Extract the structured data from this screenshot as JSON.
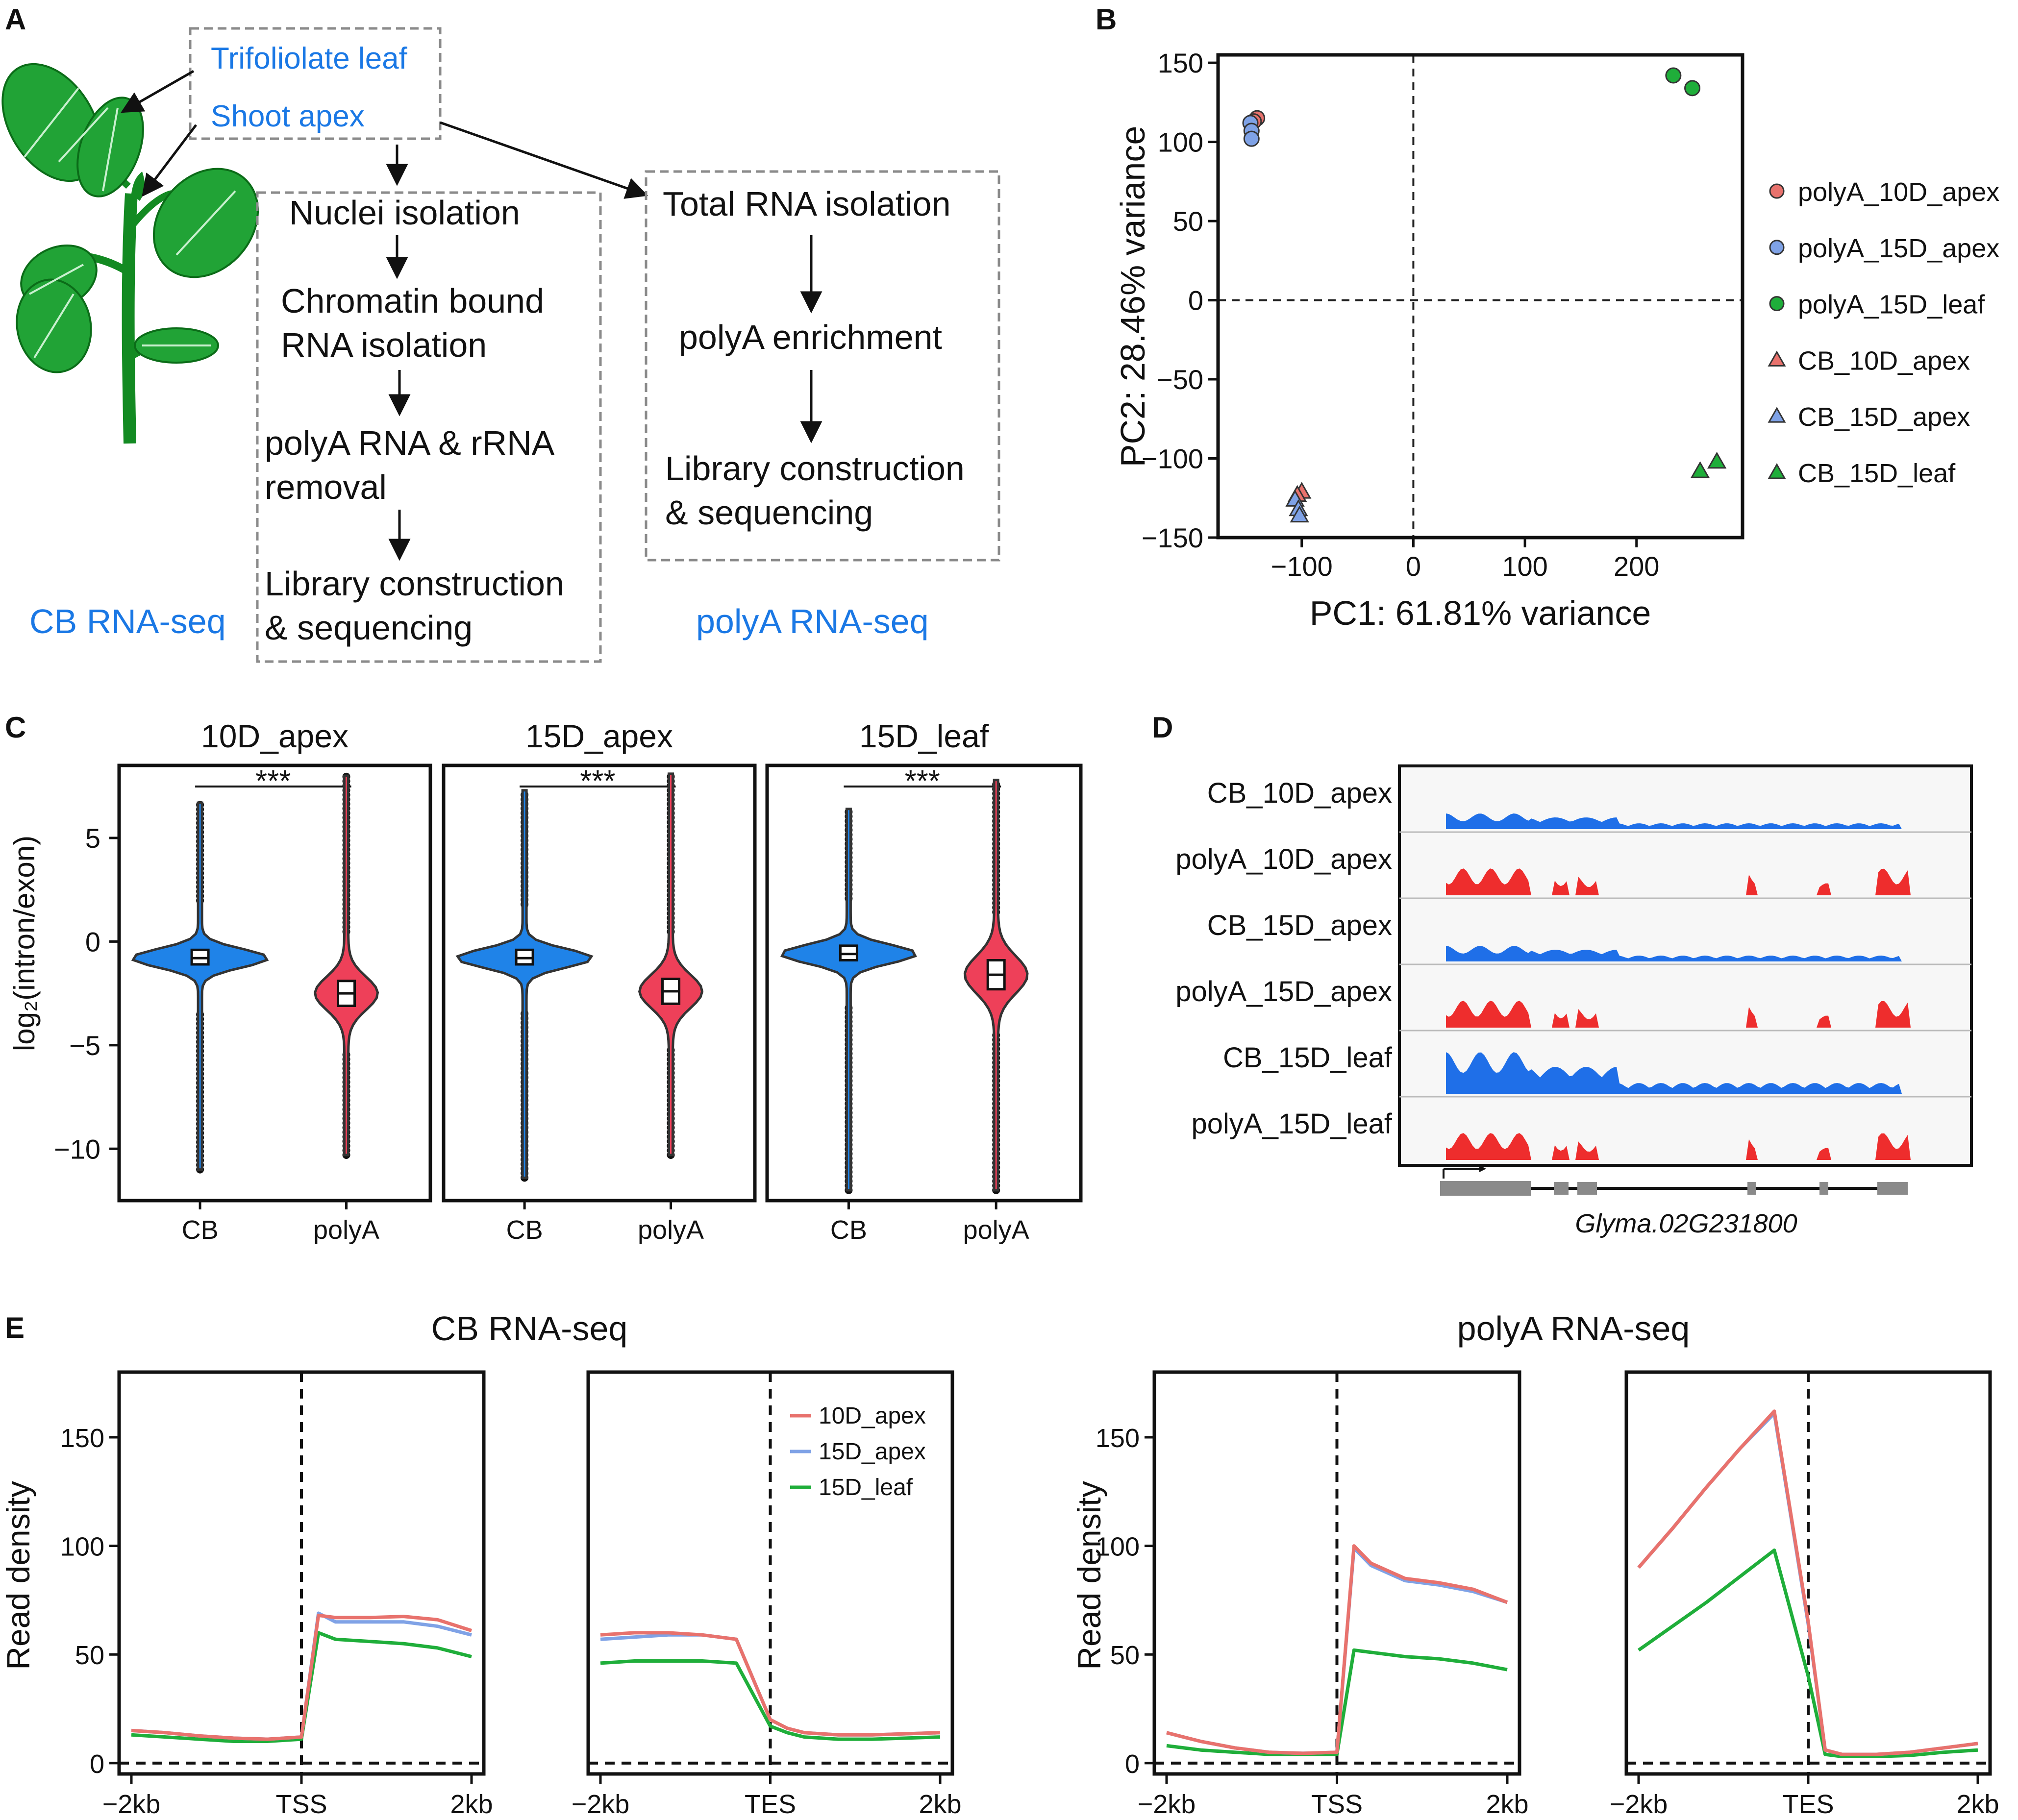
{
  "colors": {
    "red": "#e8726d",
    "blue": "#7fa2e6",
    "green": "#1fae3a",
    "cb_violin": "#1f83e8",
    "polya_violin": "#ee4059",
    "track_blue": "#1f6fe8",
    "track_red": "#ee2d2d",
    "flow_blue": "#1a78e5"
  },
  "panel_labels": {
    "a": "A",
    "b": "B",
    "c": "C",
    "d": "D",
    "e": "E"
  },
  "panel_a": {
    "box_top": [
      "Trifoliolate leaf",
      "Shoot apex"
    ],
    "cb_steps": [
      "Nuclei isolation",
      "Chromatin bound",
      "RNA isolation",
      "polyA RNA & rRNA",
      "removal",
      "Library construction",
      "& sequencing"
    ],
    "polya_steps": [
      "Total RNA isolation",
      "polyA enrichment",
      "Library construction",
      "& sequencing"
    ],
    "cb_label": "CB RNA-seq",
    "polya_label": "polyA RNA-seq"
  },
  "panel_b": {
    "chart_data": {
      "type": "scatter",
      "xlabel": "PC1: 61.81% variance",
      "ylabel": "PC2: 28.46% variance",
      "xlim": [
        -175,
        295
      ],
      "ylim": [
        -150,
        155
      ],
      "xticks": [
        -100,
        0,
        100,
        200
      ],
      "yticks": [
        -150,
        -100,
        -50,
        0,
        50,
        100,
        150
      ],
      "xtick_labels": [
        "−100",
        "0",
        "100",
        "200"
      ],
      "ytick_labels": [
        "−150",
        "−100",
        "−50",
        "0",
        "50",
        "100",
        "150"
      ],
      "legend_position": "right",
      "series": [
        {
          "name": "polyA_10D_apex",
          "marker": "circle",
          "color": "#e8726d",
          "points": [
            [
              -140,
              115
            ],
            [
              -143,
              113
            ]
          ]
        },
        {
          "name": "polyA_15D_apex",
          "marker": "circle",
          "color": "#7fa2e6",
          "points": [
            [
              -146,
              112
            ],
            [
              -145,
              107
            ],
            [
              -145,
              102
            ]
          ]
        },
        {
          "name": "polyA_15D_leaf",
          "marker": "circle",
          "color": "#1fae3a",
          "points": [
            [
              233,
              142
            ],
            [
              250,
              134
            ]
          ]
        },
        {
          "name": "CB_10D_apex",
          "marker": "triangle",
          "color": "#e8726d",
          "points": [
            [
              -100,
              -121
            ],
            [
              -104,
              -123
            ]
          ]
        },
        {
          "name": "CB_15D_apex",
          "marker": "triangle",
          "color": "#7fa2e6",
          "points": [
            [
              -106,
              -126
            ],
            [
              -103,
              -132
            ],
            [
              -102,
              -136
            ]
          ]
        },
        {
          "name": "CB_15D_leaf",
          "marker": "triangle",
          "color": "#1fae3a",
          "points": [
            [
              257,
              -108
            ],
            [
              272,
              -102
            ]
          ]
        }
      ]
    }
  },
  "panel_c": {
    "ylabel": "log₂(intron/exon)",
    "ytick_labels": [
      "5",
      "0",
      "−5",
      "−10"
    ],
    "chart_data": {
      "type": "violin",
      "ylim": [
        -12.5,
        8.5
      ],
      "yticks": [
        5,
        0,
        -5,
        -10
      ],
      "panels": [
        {
          "title": "10D_apex",
          "significance": "***",
          "groups": [
            {
              "name": "CB",
              "median": -0.8,
              "q1": -1.1,
              "q3": -0.4,
              "min": -11.0,
              "max": 6.7
            },
            {
              "name": "polyA",
              "median": -2.5,
              "q1": -3.1,
              "q3": -1.9,
              "min": -10.3,
              "max": 8.0
            }
          ]
        },
        {
          "title": "15D_apex",
          "significance": "***",
          "groups": [
            {
              "name": "CB",
              "median": -0.8,
              "q1": -1.1,
              "q3": -0.4,
              "min": -11.4,
              "max": 7.3
            },
            {
              "name": "polyA",
              "median": -2.4,
              "q1": -3.0,
              "q3": -1.8,
              "min": -10.3,
              "max": 8.1
            }
          ]
        },
        {
          "title": "15D_leaf",
          "significance": "***",
          "groups": [
            {
              "name": "CB",
              "median": -0.6,
              "q1": -0.9,
              "q3": -0.2,
              "min": -12.0,
              "max": 6.4
            },
            {
              "name": "polyA",
              "median": -1.6,
              "q1": -2.3,
              "q3": -0.9,
              "min": -12.0,
              "max": 7.8
            }
          ]
        }
      ]
    }
  },
  "panel_d": {
    "tracks": [
      "CB_10D_apex",
      "polyA_10D_apex",
      "CB_15D_apex",
      "polyA_15D_apex",
      "CB_15D_leaf",
      "polyA_15D_leaf"
    ],
    "gene_name": "Glyma.02G231800"
  },
  "panel_e": {
    "titles": [
      "CB RNA-seq",
      "polyA RNA-seq"
    ],
    "ylabel": "Read density",
    "legend": [
      "10D_apex",
      "15D_apex",
      "15D_leaf"
    ],
    "chart_data": {
      "type": "line",
      "ylim": [
        -5,
        180
      ],
      "yticks": [
        0,
        50,
        100,
        150
      ],
      "ytick_labels": [
        "0",
        "50",
        "100",
        "150"
      ],
      "x_positions": [
        0,
        0.1,
        0.2,
        0.3,
        0.4,
        0.5,
        0.55,
        0.6,
        0.7,
        0.8,
        0.9,
        1.0
      ],
      "plots": [
        {
          "id": "cb_tss",
          "xtick_labels": [
            "−2kb",
            "TSS",
            "2kb"
          ],
          "series": [
            {
              "name": "10D_apex",
              "values": [
                15,
                14,
                12.5,
                11.5,
                11,
                12,
                68,
                67,
                67,
                67.5,
                66,
                61
              ]
            },
            {
              "name": "15D_apex",
              "values": [
                15,
                14,
                12.5,
                11.5,
                11,
                12,
                69,
                65,
                65,
                65,
                63,
                59
              ]
            },
            {
              "name": "15D_leaf",
              "values": [
                13,
                12,
                11,
                10,
                10,
                11,
                60,
                57,
                56,
                55,
                53,
                49
              ]
            }
          ]
        },
        {
          "id": "cb_tes",
          "xtick_labels": [
            "−2kb",
            "TES",
            "2kb"
          ],
          "series": [
            {
              "name": "10D_apex",
              "values": [
                59,
                60,
                60,
                59,
                57,
                20,
                16,
                14,
                13,
                13,
                13.5,
                14
              ]
            },
            {
              "name": "15D_apex",
              "values": [
                57,
                58,
                59,
                59,
                57,
                20,
                16,
                14,
                13,
                13,
                13.5,
                14
              ]
            },
            {
              "name": "15D_leaf",
              "values": [
                46,
                47,
                47,
                47,
                46,
                17,
                14,
                12,
                11,
                11,
                11.5,
                12
              ]
            }
          ]
        },
        {
          "id": "pa_tss",
          "xtick_labels": [
            "−2kb",
            "TSS",
            "2kb"
          ],
          "series": [
            {
              "name": "10D_apex",
              "values": [
                14,
                10,
                7,
                5,
                4.5,
                5,
                100,
                92,
                85,
                83,
                80,
                74
              ]
            },
            {
              "name": "15D_apex",
              "values": [
                14,
                10,
                7,
                5,
                4.5,
                5,
                99,
                91,
                84,
                82,
                79,
                74
              ]
            },
            {
              "name": "15D_leaf",
              "values": [
                8,
                6,
                5,
                4,
                4,
                4,
                52,
                51,
                49,
                48,
                46,
                43
              ]
            }
          ]
        },
        {
          "id": "pa_tes",
          "xtick_labels": [
            "−2kb",
            "TES",
            "2kb"
          ],
          "series": [
            {
              "name": "10D_apex",
              "values": [
                90,
                108,
                127,
                145,
                162,
                65,
                6,
                4,
                4,
                5,
                7,
                9
              ]
            },
            {
              "name": "15D_apex",
              "values": [
                90,
                108,
                127,
                145,
                161,
                64,
                6,
                4,
                4,
                5,
                7,
                9
              ]
            },
            {
              "name": "15D_leaf",
              "values": [
                52,
                63,
                74,
                86,
                98,
                40,
                4,
                3,
                3,
                3.5,
                5,
                6
              ]
            }
          ]
        }
      ]
    }
  }
}
